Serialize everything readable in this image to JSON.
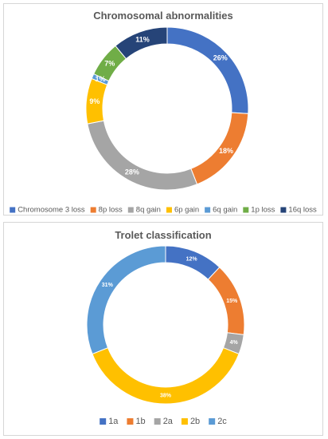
{
  "chart_data": [
    {
      "type": "donut",
      "title": "Chromosomal abnormalities",
      "categories": [
        "Chromosome 3 loss",
        "8p loss",
        "8q gain",
        "6p gain",
        "6q gain",
        "1p loss",
        "16q loss"
      ],
      "values": [
        26,
        18,
        28,
        9,
        1,
        7,
        11
      ],
      "labels": [
        "26%",
        "18%",
        "28%",
        "9%",
        "1%",
        "7%",
        "11%"
      ],
      "colors": [
        "#4472C4",
        "#ED7D31",
        "#A5A5A5",
        "#FFC000",
        "#5B9BD5",
        "#70AD47",
        "#264478"
      ],
      "legend_position": "bottom"
    },
    {
      "type": "donut",
      "title": "Trolet classification",
      "categories": [
        "1a",
        "1b",
        "2a",
        "2b",
        "2c"
      ],
      "values": [
        12,
        15,
        4,
        38,
        31
      ],
      "labels": [
        "12%",
        "15%",
        "4%",
        "38%",
        "31%"
      ],
      "colors": [
        "#4472C4",
        "#ED7D31",
        "#A5A5A5",
        "#FFC000",
        "#5B9BD5"
      ],
      "legend_position": "bottom"
    }
  ]
}
